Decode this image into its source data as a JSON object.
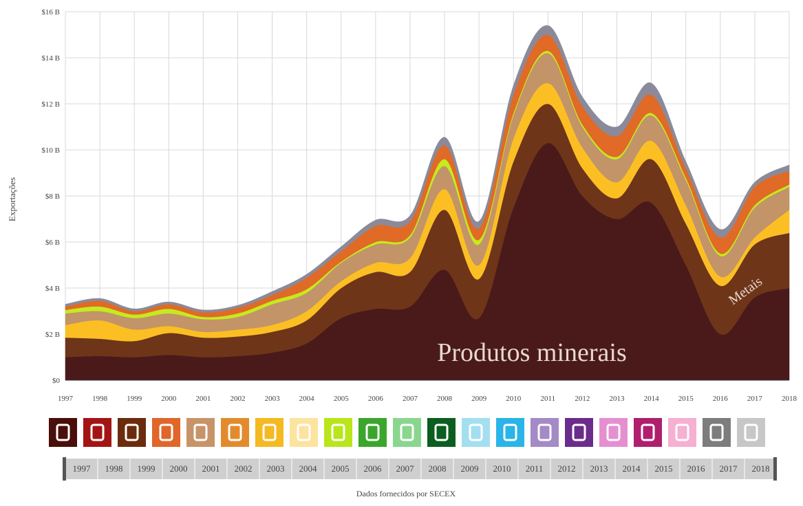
{
  "chart_data": {
    "type": "stacked_area",
    "y_label": "Exportações",
    "source": "Dados fornecidos por SECEX",
    "x": [
      1997,
      1998,
      1999,
      2000,
      2001,
      2002,
      2003,
      2004,
      2005,
      2006,
      2007,
      2008,
      2009,
      2010,
      2011,
      2012,
      2013,
      2014,
      2015,
      2016,
      2017,
      2018
    ],
    "xlim": [
      1997,
      2018
    ],
    "xticks": [
      1997,
      1998,
      1999,
      2000,
      2001,
      2002,
      2003,
      2004,
      2005,
      2006,
      2007,
      2008,
      2009,
      2010,
      2011,
      2012,
      2013,
      2014,
      2015,
      2016,
      2017,
      2018
    ],
    "ylim": [
      0,
      16
    ],
    "yticks": [
      {
        "value": 0,
        "label": "$0"
      },
      {
        "value": 2,
        "label": "$2 B"
      },
      {
        "value": 4,
        "label": "$4 B"
      },
      {
        "value": 6,
        "label": "$6 B"
      },
      {
        "value": 8,
        "label": "$8 B"
      },
      {
        "value": 10,
        "label": "$10 B"
      },
      {
        "value": 12,
        "label": "$12 B"
      },
      {
        "value": 14,
        "label": "$14 B"
      },
      {
        "value": 16,
        "label": "$16 B"
      }
    ],
    "grid": true,
    "series": [
      {
        "name": "Produtos minerais",
        "color": "#4a1a1a",
        "values": [
          1.0,
          1.05,
          1.0,
          1.1,
          1.0,
          1.05,
          1.2,
          1.6,
          2.7,
          3.1,
          3.2,
          4.8,
          2.7,
          7.5,
          10.3,
          8.0,
          7.0,
          7.7,
          5.0,
          2.0,
          3.6,
          4.0
        ]
      },
      {
        "name": "Metais",
        "color": "#6e3519",
        "values": [
          0.85,
          0.75,
          0.7,
          0.95,
          0.85,
          0.85,
          0.9,
          1.0,
          1.3,
          1.6,
          1.5,
          2.6,
          1.7,
          2.0,
          1.7,
          1.2,
          0.9,
          1.9,
          1.8,
          2.1,
          2.3,
          2.4
        ]
      },
      {
        "color": "#fbbf24",
        "values": [
          0.55,
          0.8,
          0.5,
          0.3,
          0.25,
          0.3,
          0.3,
          0.4,
          0.3,
          0.4,
          0.6,
          0.9,
          0.6,
          1.0,
          0.9,
          0.9,
          0.7,
          0.8,
          0.8,
          0.4,
          0.3,
          1.0
        ]
      },
      {
        "color": "#c29468",
        "values": [
          0.5,
          0.4,
          0.5,
          0.55,
          0.55,
          0.55,
          0.9,
          0.8,
          0.8,
          0.8,
          0.9,
          1.0,
          0.9,
          1.0,
          1.3,
          0.9,
          1.0,
          1.1,
          1.1,
          0.9,
          1.3,
          1.0
        ]
      },
      {
        "color": "#c6ea1e",
        "values": [
          0.15,
          0.2,
          0.15,
          0.2,
          0.1,
          0.15,
          0.15,
          0.15,
          0.05,
          0.1,
          0.1,
          0.3,
          0.2,
          0.1,
          0.1,
          0.1,
          0.1,
          0.1,
          0.1,
          0.1,
          0.1,
          0.1
        ]
      },
      {
        "color": "#e06a26",
        "values": [
          0.15,
          0.25,
          0.15,
          0.2,
          0.2,
          0.25,
          0.25,
          0.5,
          0.45,
          0.7,
          0.6,
          0.6,
          0.5,
          0.8,
          0.7,
          0.8,
          0.9,
          0.8,
          0.4,
          0.7,
          0.8,
          0.6
        ]
      },
      {
        "color": "#8a8a9a",
        "values": [
          0.1,
          0.1,
          0.1,
          0.1,
          0.1,
          0.1,
          0.15,
          0.15,
          0.2,
          0.25,
          0.25,
          0.35,
          0.3,
          0.4,
          0.4,
          0.4,
          0.4,
          0.5,
          0.3,
          0.35,
          0.2,
          0.25
        ]
      }
    ]
  }
}
